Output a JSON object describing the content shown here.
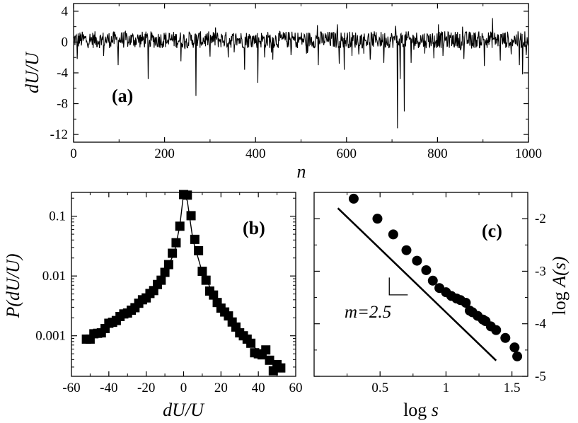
{
  "chart_data": [
    {
      "panel": "(a)",
      "type": "line",
      "panel_label": "(a)",
      "xlabel": "n",
      "ylabel": "dU/U",
      "xlim": [
        0,
        1000
      ],
      "ylim": [
        -13,
        5
      ],
      "xticks": [
        0,
        200,
        400,
        600,
        800,
        1000
      ],
      "xtick_labels": [
        "0",
        "200",
        "400",
        "600",
        "800",
        "1000"
      ],
      "yticks": [
        4,
        0,
        -4,
        -8,
        -12
      ],
      "ytick_labels": [
        "4",
        "0",
        "-4",
        "-8",
        "-12"
      ],
      "noise_band": [
        -0.8,
        1.4
      ],
      "dips": [
        {
          "x": 8,
          "y": -2.2
        },
        {
          "x": 66,
          "y": -1.8
        },
        {
          "x": 98,
          "y": -3.0
        },
        {
          "x": 164,
          "y": -4.8
        },
        {
          "x": 236,
          "y": -2.5
        },
        {
          "x": 269,
          "y": -7.0
        },
        {
          "x": 300,
          "y": -1.9
        },
        {
          "x": 340,
          "y": -2.0
        },
        {
          "x": 376,
          "y": -3.6
        },
        {
          "x": 405,
          "y": -5.3
        },
        {
          "x": 420,
          "y": -2.0
        },
        {
          "x": 438,
          "y": -2.3
        },
        {
          "x": 478,
          "y": -1.7
        },
        {
          "x": 512,
          "y": -1.5
        },
        {
          "x": 538,
          "y": -3.0
        },
        {
          "x": 584,
          "y": -2.8
        },
        {
          "x": 595,
          "y": -3.6
        },
        {
          "x": 612,
          "y": -1.8
        },
        {
          "x": 652,
          "y": -2.3
        },
        {
          "x": 682,
          "y": -2.7
        },
        {
          "x": 712,
          "y": -11.2
        },
        {
          "x": 718,
          "y": -4.8
        },
        {
          "x": 727,
          "y": -9.0
        },
        {
          "x": 742,
          "y": -2.7
        },
        {
          "x": 772,
          "y": -1.5
        },
        {
          "x": 792,
          "y": -2.1
        },
        {
          "x": 812,
          "y": -1.8
        },
        {
          "x": 858,
          "y": -2.2
        },
        {
          "x": 903,
          "y": -3.1
        },
        {
          "x": 938,
          "y": -2.4
        },
        {
          "x": 962,
          "y": -1.6
        },
        {
          "x": 980,
          "y": -3.0
        },
        {
          "x": 987,
          "y": -4.2
        },
        {
          "x": 995,
          "y": -1.7
        }
      ],
      "peaks": [
        {
          "x": 312,
          "y": 1.9
        },
        {
          "x": 536,
          "y": 2.2
        },
        {
          "x": 580,
          "y": 2.3
        },
        {
          "x": 708,
          "y": 2.1
        },
        {
          "x": 802,
          "y": 2.3
        },
        {
          "x": 855,
          "y": 2.0
        },
        {
          "x": 921,
          "y": 3.1
        }
      ]
    },
    {
      "panel": "(b)",
      "type": "scatter",
      "panel_label": "(b)",
      "xlabel": "dU/U",
      "ylabel": "P(dU/U)",
      "xscale": "linear",
      "yscale": "log",
      "xlim": [
        -60,
        60
      ],
      "ylim": [
        0.00021,
        0.25
      ],
      "xticks": [
        -60,
        -40,
        -20,
        0,
        20,
        40,
        60
      ],
      "xtick_labels": [
        "-60",
        "-40",
        "-20",
        "0",
        "20",
        "40",
        "60"
      ],
      "yticks": [
        0.1,
        0.01,
        0.001
      ],
      "ytick_labels": [
        "0.1",
        "0.01",
        "0.001"
      ],
      "x": [
        -52,
        -50,
        -48,
        -46,
        -44,
        -42,
        -40,
        -38,
        -36,
        -34,
        -32,
        -30,
        -28,
        -26,
        -24,
        -22,
        -20,
        -18,
        -16,
        -14,
        -12,
        -10,
        -8,
        -6,
        -4,
        -2,
        0,
        2,
        4,
        6,
        8,
        10,
        12,
        14,
        16,
        18,
        20,
        22,
        24,
        26,
        28,
        30,
        32,
        34,
        36,
        38,
        40,
        42,
        44,
        46,
        48,
        50,
        52
      ],
      "y": [
        0.00088,
        0.00088,
        0.00108,
        0.0011,
        0.00112,
        0.00132,
        0.00162,
        0.00168,
        0.0018,
        0.0021,
        0.00232,
        0.0024,
        0.00268,
        0.00295,
        0.0035,
        0.004,
        0.0043,
        0.0051,
        0.0057,
        0.0072,
        0.0085,
        0.0115,
        0.0155,
        0.024,
        0.036,
        0.068,
        0.23,
        0.225,
        0.102,
        0.041,
        0.0265,
        0.012,
        0.0085,
        0.0056,
        0.0048,
        0.0036,
        0.0029,
        0.0025,
        0.00215,
        0.0017,
        0.0014,
        0.00112,
        0.001,
        0.00088,
        0.00075,
        0.00052,
        0.0005,
        0.00048,
        0.00058,
        0.00039,
        0.00026,
        0.00033,
        0.00029
      ],
      "fit_line": {
        "x": [
          -54,
          -40,
          -30,
          -20,
          -10,
          -5,
          -2,
          0,
          2,
          5,
          10,
          20,
          30,
          40,
          52
        ],
        "y": [
          0.00082,
          0.00155,
          0.00235,
          0.0042,
          0.0115,
          0.024,
          0.07,
          0.24,
          0.18,
          0.04,
          0.0115,
          0.0029,
          0.00115,
          0.00055,
          0.00028
        ]
      }
    },
    {
      "panel": "(c)",
      "type": "scatter",
      "panel_label": "(c)",
      "xlabel": "log s",
      "ylabel": "log A(s)",
      "xlim": [
        0,
        1.62
      ],
      "ylim": [
        -5,
        -1.5
      ],
      "xticks": [
        0.5,
        1,
        1.5
      ],
      "xtick_labels": [
        "0.5",
        "1",
        "1.5"
      ],
      "yticks": [
        -2,
        -3,
        -4,
        -5
      ],
      "ytick_labels": [
        "-2",
        "-3",
        "-4",
        "-5"
      ],
      "yaxis_side": "right",
      "x": [
        0.3,
        0.48,
        0.6,
        0.7,
        0.78,
        0.85,
        0.9,
        0.95,
        1.0,
        1.04,
        1.08,
        1.11,
        1.15,
        1.18,
        1.2,
        1.24,
        1.28,
        1.3,
        1.34,
        1.38,
        1.45,
        1.52,
        1.54
      ],
      "y": [
        -1.62,
        -2.0,
        -2.3,
        -2.6,
        -2.8,
        -2.98,
        -3.18,
        -3.32,
        -3.4,
        -3.47,
        -3.52,
        -3.55,
        -3.6,
        -3.75,
        -3.78,
        -3.85,
        -3.92,
        -3.95,
        -4.05,
        -4.12,
        -4.27,
        -4.45,
        -4.62
      ],
      "reference_line": {
        "x": [
          0.18,
          1.38
        ],
        "y": [
          -1.8,
          -4.7
        ],
        "slope_label": "m=2.5"
      },
      "slope_triangle": {
        "x": [
          0.57,
          0.71
        ],
        "y": [
          -3.12,
          -3.45
        ]
      }
    }
  ]
}
